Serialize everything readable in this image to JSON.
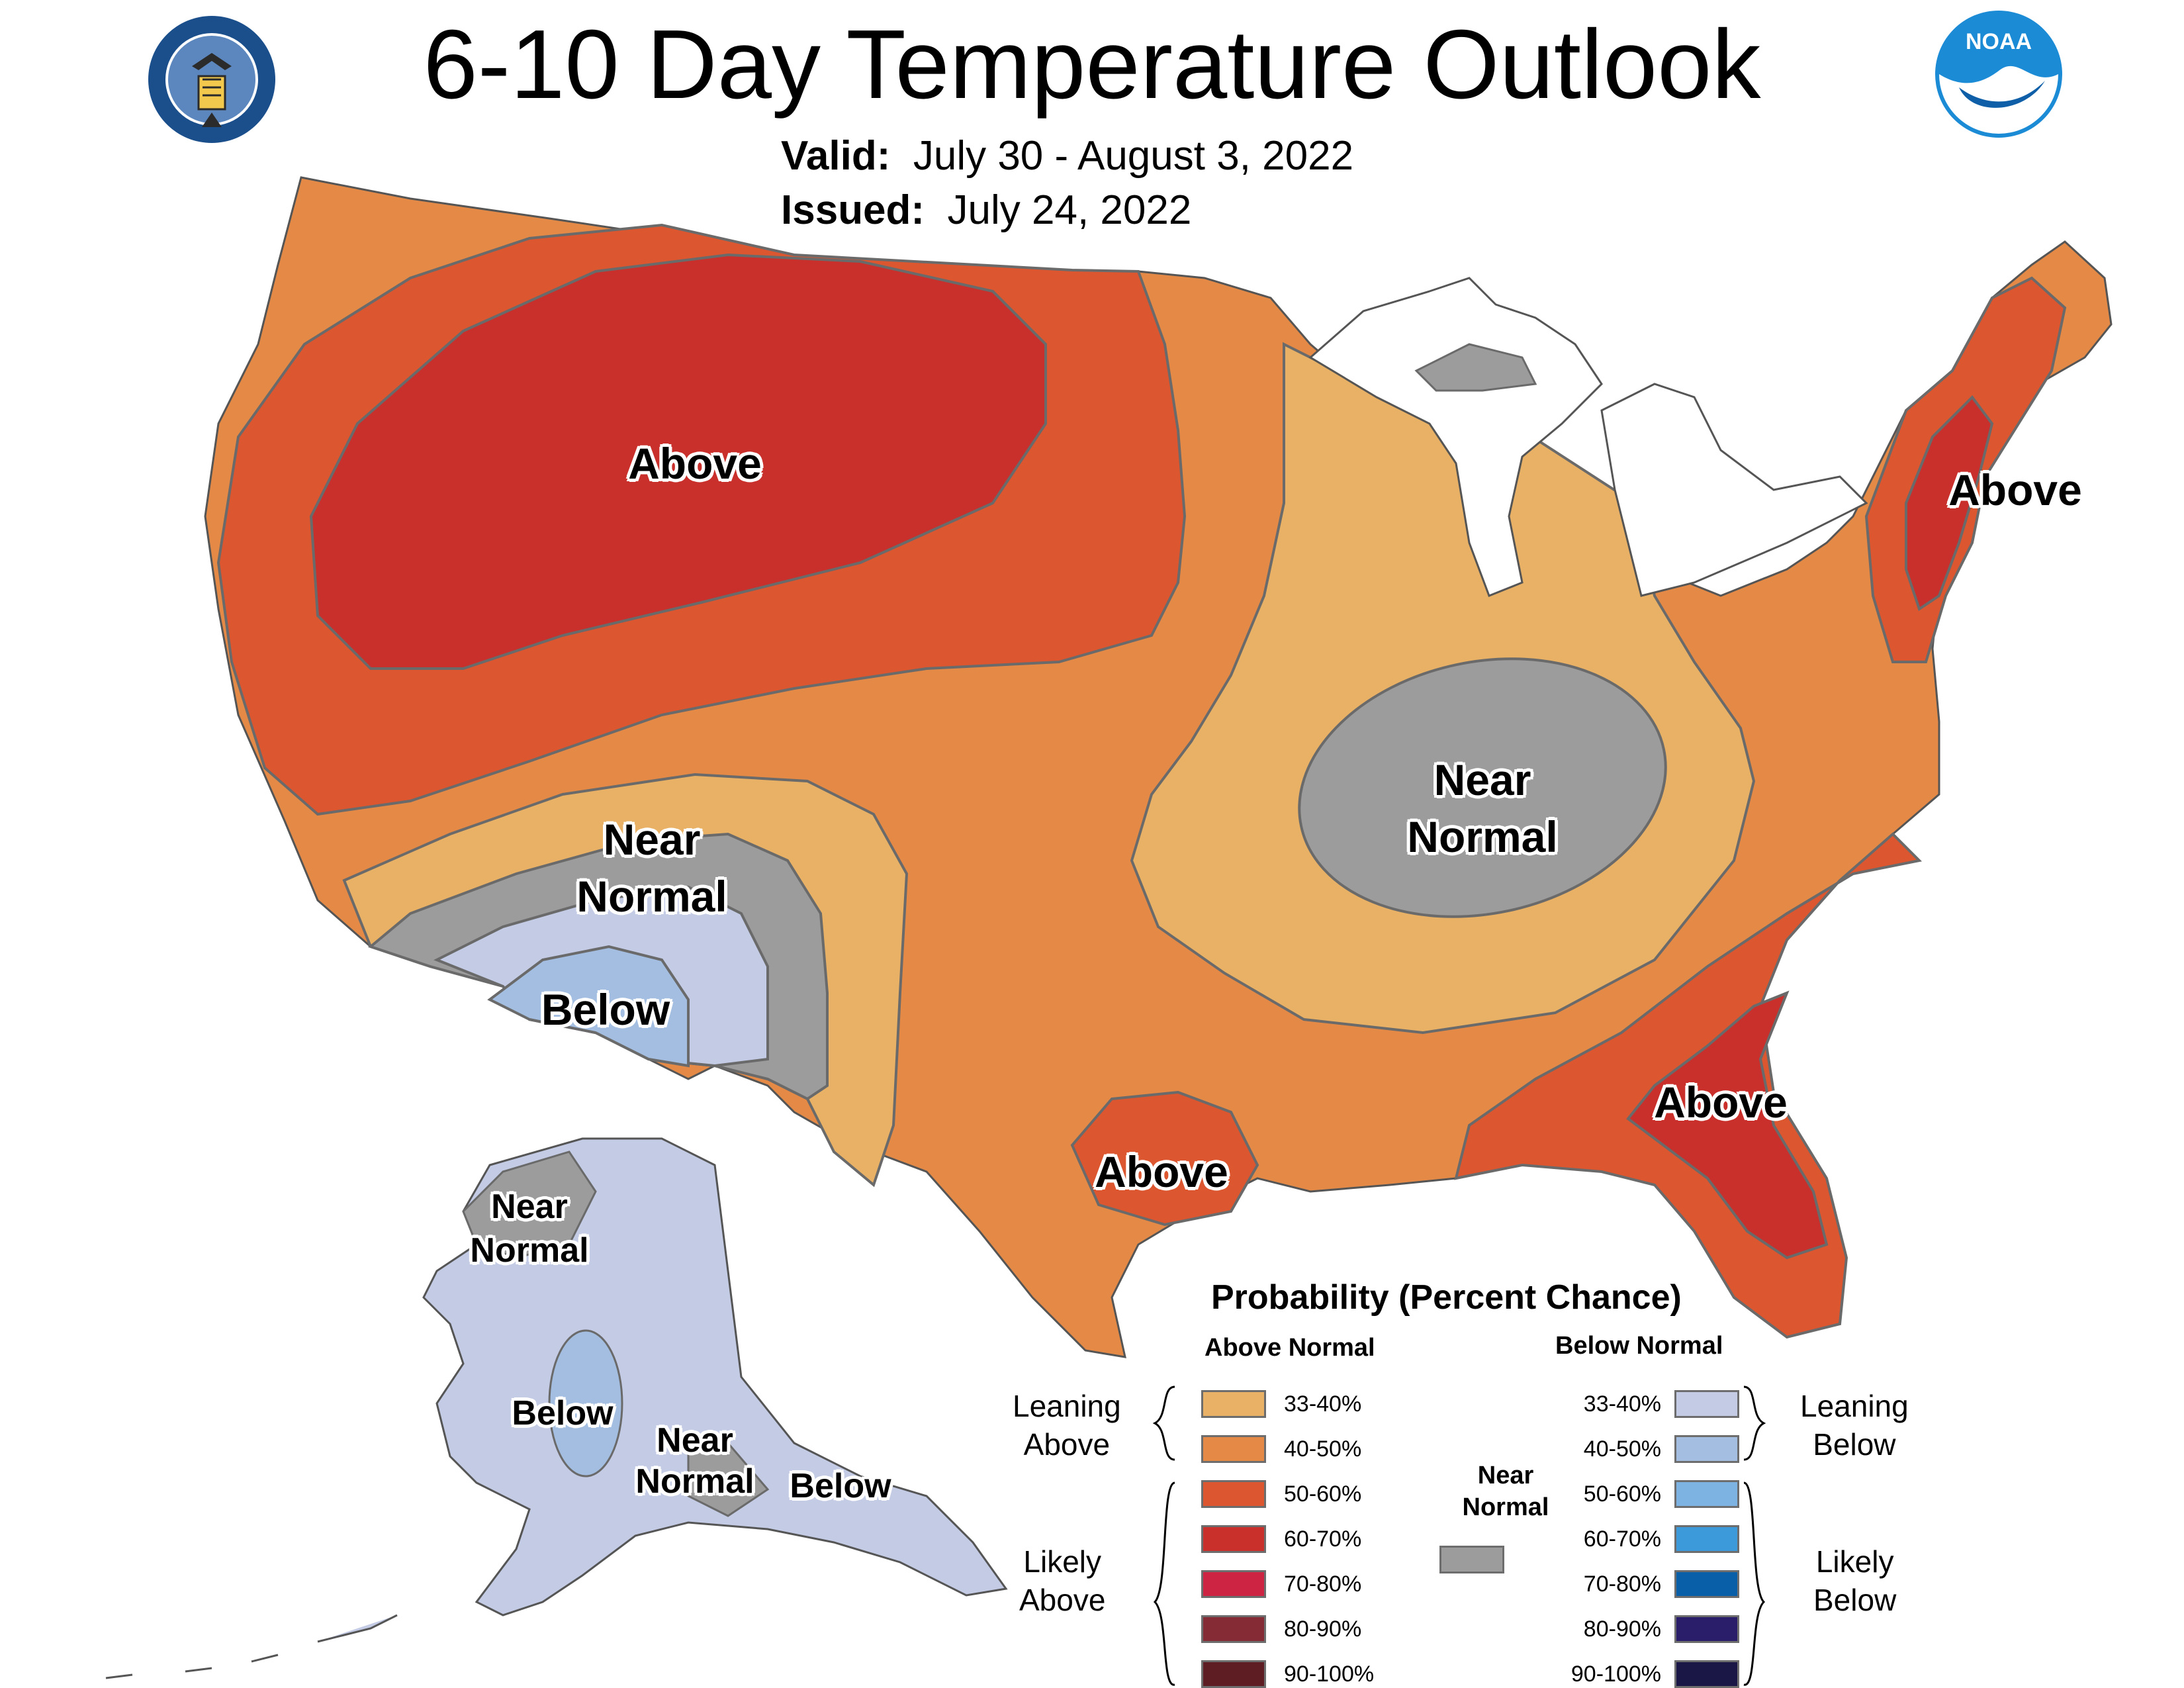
{
  "header": {
    "title": "6-10 Day Temperature Outlook",
    "valid_label": "Valid:",
    "valid_value": "July 30 - August 3, 2022",
    "issued_label": "Issued:",
    "issued_value": "July 24, 2022"
  },
  "logos": {
    "left": "department-of-commerce-seal",
    "right": "noaa-logo",
    "right_text": "NOAA"
  },
  "colors": {
    "above_33_40": "#E8B165",
    "above_40_50": "#E48A46",
    "above_50_60": "#DC5630",
    "above_60_70": "#C92F2B",
    "above_70_80": "#CD2443",
    "above_80_90": "#852B35",
    "above_90_100": "#5E1D22",
    "near_normal": "#9C9C9C",
    "below_33_40": "#C3CBE5",
    "below_40_50": "#A3BEE0",
    "below_50_60": "#7DB3E3",
    "below_60_70": "#3C9ADA",
    "below_70_80": "#0A60A8",
    "below_80_90": "#2A1E6B",
    "below_90_100": "#1A1646",
    "great_lakes": "#FFFFFF",
    "boundary": "#6A6A6A"
  },
  "map_labels": {
    "above_northwest": "Above",
    "above_northeast": "Above",
    "above_southeast": "Above",
    "above_texas": "Above",
    "near_normal_southwest": "Near\nNormal",
    "near_normal_ohio_valley": "Near\nNormal",
    "below_southwest": "Below",
    "alaska_near_normal_north": "Near\nNormal",
    "alaska_below_interior": "Below",
    "alaska_near_normal_south": "Near\nNormal",
    "alaska_below_panhandle": "Below"
  },
  "legend": {
    "title": "Probability (Percent Chance)",
    "above_heading": "Above Normal",
    "below_heading": "Below Normal",
    "near_heading": "Near\nNormal",
    "leaning_above": "Leaning\nAbove",
    "likely_above": "Likely\nAbove",
    "leaning_below": "Leaning\nBelow",
    "likely_below": "Likely\nBelow",
    "above_bins": [
      "33-40%",
      "40-50%",
      "50-60%",
      "60-70%",
      "70-80%",
      "80-90%",
      "90-100%"
    ],
    "below_bins": [
      "33-40%",
      "40-50%",
      "50-60%",
      "60-70%",
      "70-80%",
      "80-90%",
      "90-100%"
    ]
  }
}
